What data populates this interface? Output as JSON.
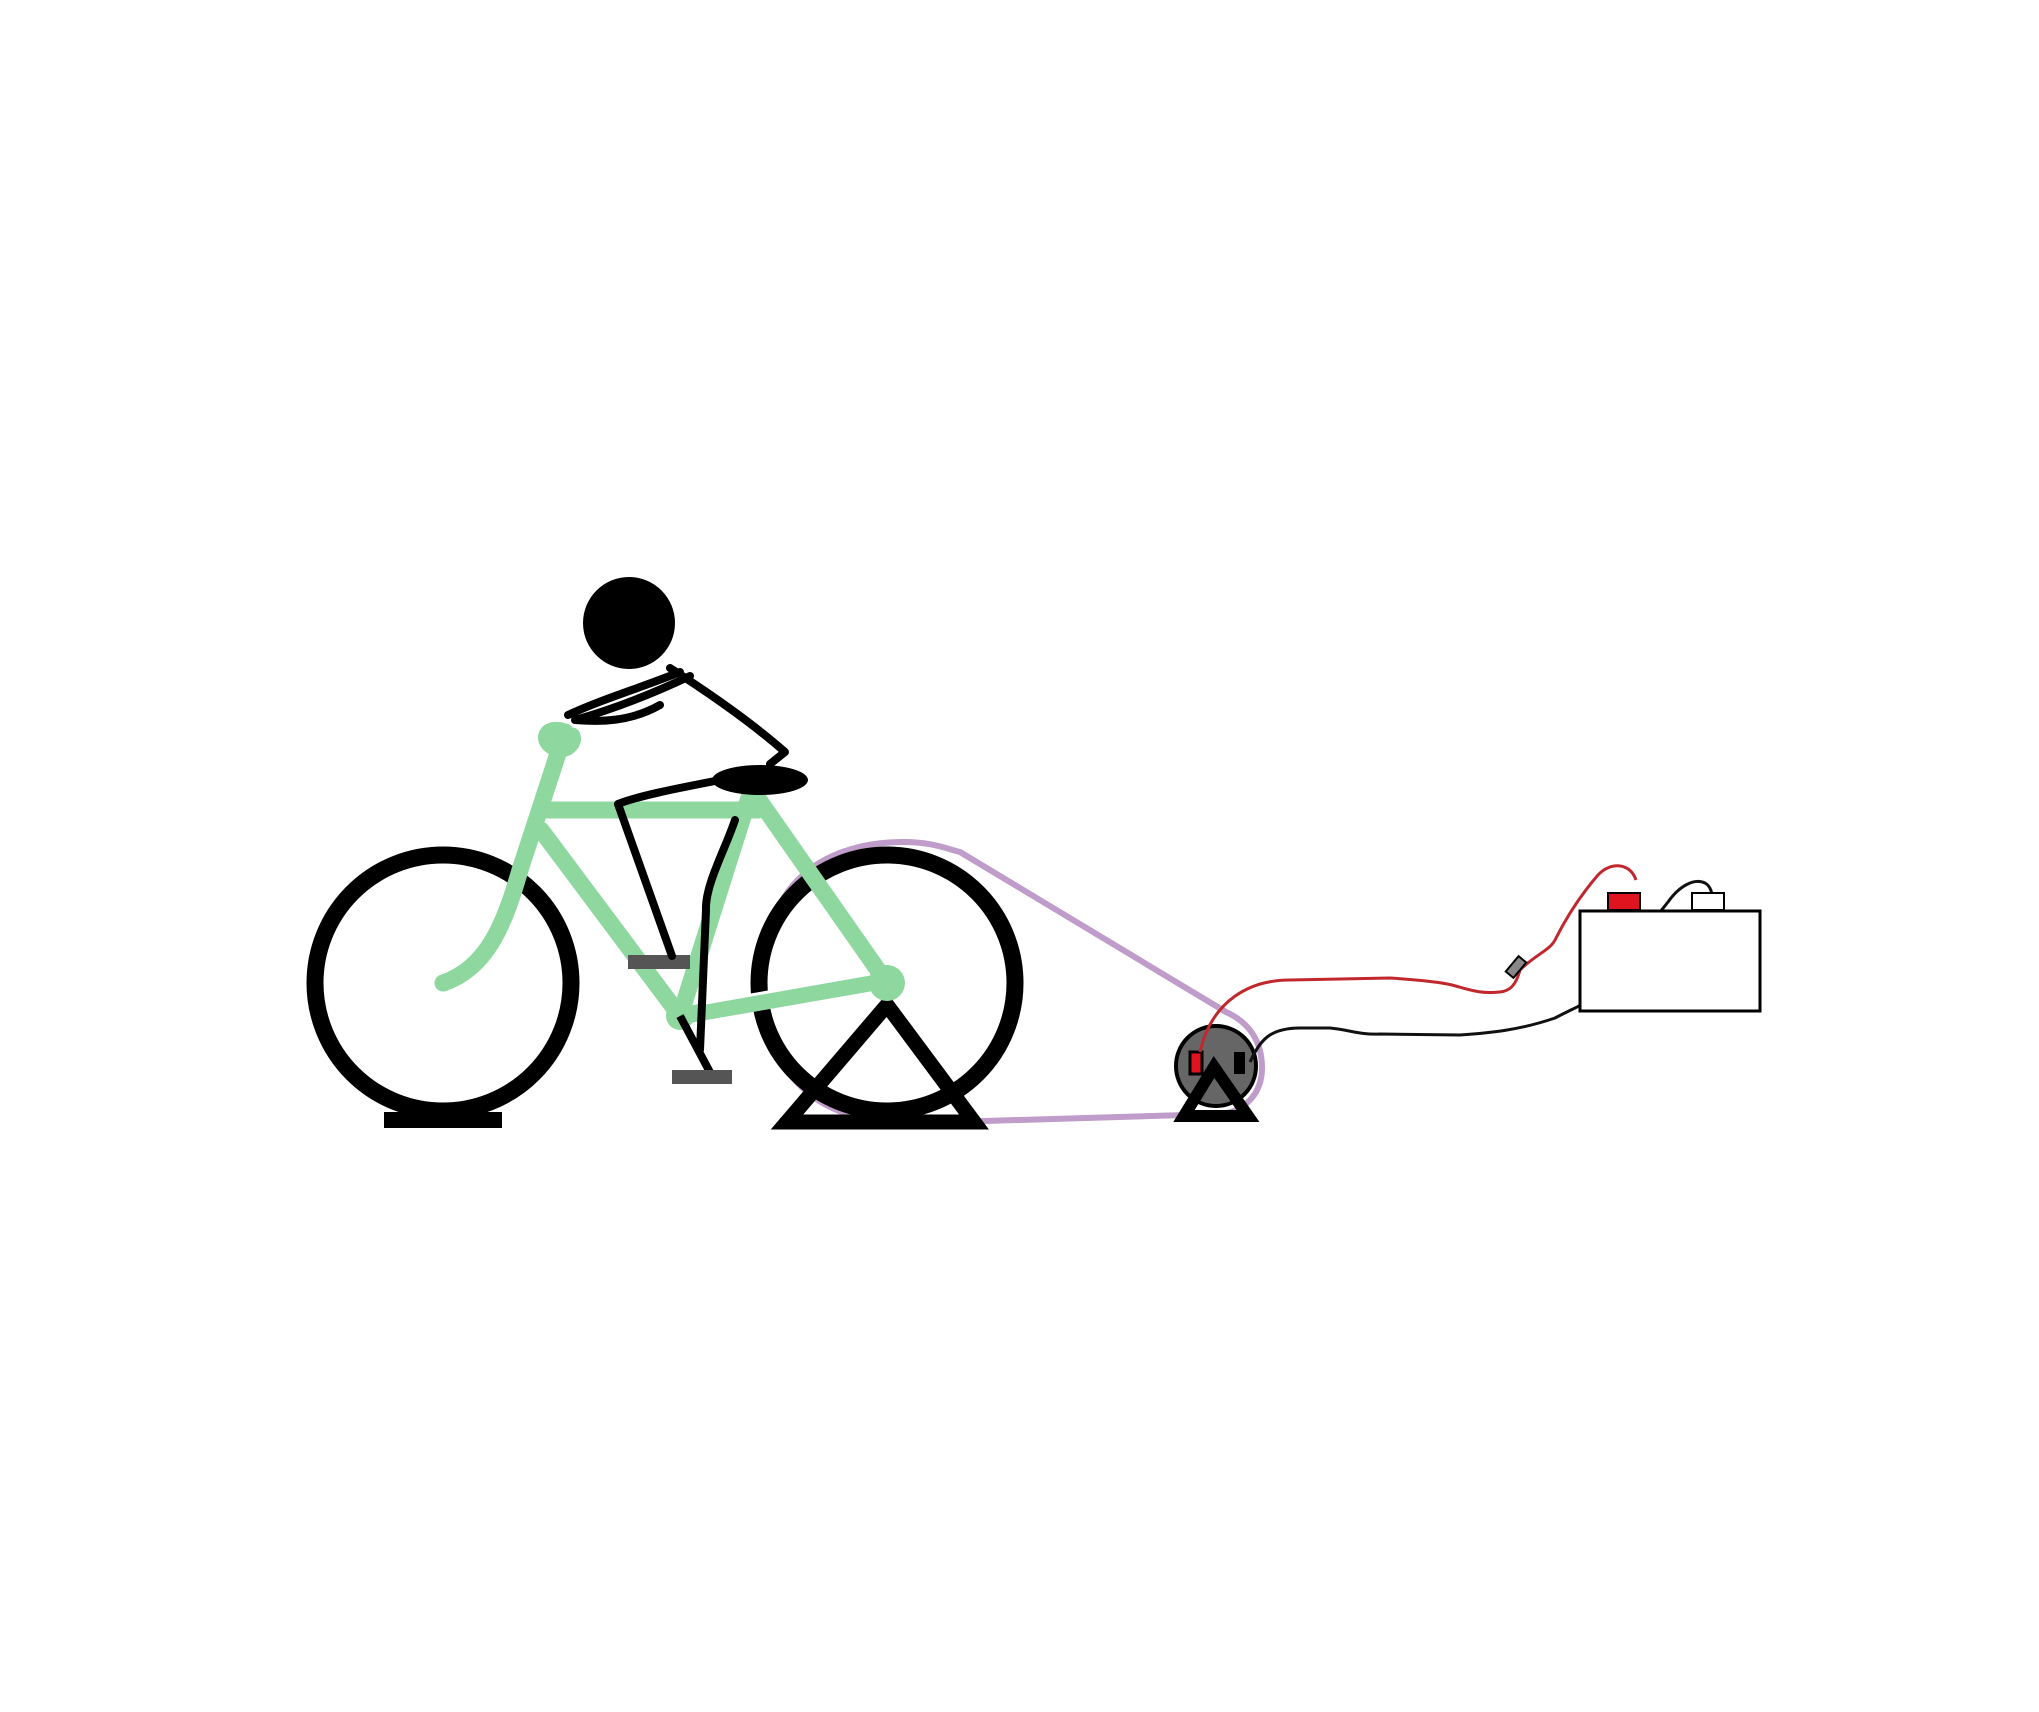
{
  "diagram": {
    "components": [
      "rider",
      "bicycle",
      "rear-wheel-stand",
      "front-wheel-block",
      "drive-belt",
      "generator",
      "generator-stand",
      "diode",
      "battery",
      "positive-wire",
      "negative-wire"
    ]
  },
  "colors": {
    "background": "#ffffff",
    "bike_frame": "#8ed8a0",
    "outline": "#000000",
    "belt": "#bf9cc9",
    "generator_body": "#666666",
    "positive_terminal": "#e0141e",
    "positive_wire": "#c0282d",
    "negative_wire": "#111111",
    "pedal": "#555555",
    "battery_fill": "#ffffff"
  }
}
